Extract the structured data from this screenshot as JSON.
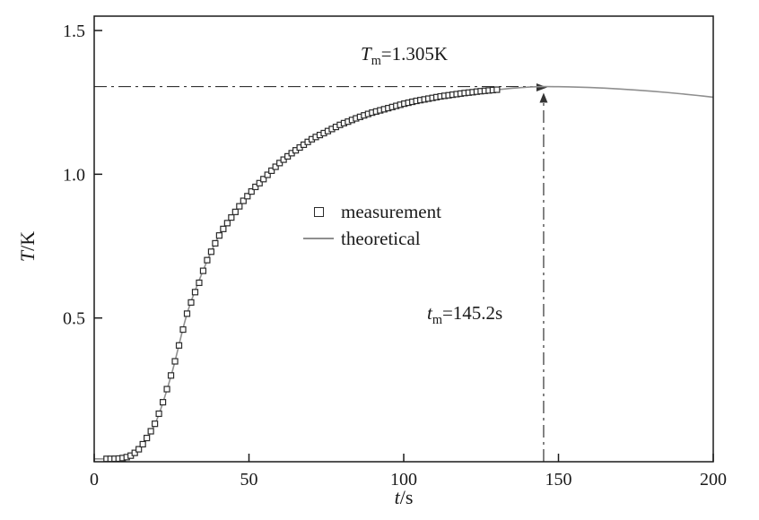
{
  "chart_data": {
    "type": "line",
    "title": "",
    "xlabel": {
      "var": "t",
      "rest": "/s"
    },
    "ylabel": {
      "var": "T",
      "rest": "/K"
    },
    "xlim": [
      0,
      200
    ],
    "ylim": [
      0,
      1.55
    ],
    "grid": false,
    "legend_position": "center",
    "xticks": [
      {
        "v": 0,
        "label": "0"
      },
      {
        "v": 50,
        "label": "50"
      },
      {
        "v": 100,
        "label": "100"
      },
      {
        "v": 150,
        "label": "150"
      },
      {
        "v": 200,
        "label": "200"
      }
    ],
    "yticks": [
      {
        "v": 0.5,
        "label": "0.5"
      },
      {
        "v": 1.0,
        "label": "1.0"
      },
      {
        "v": 1.5,
        "label": "1.5"
      }
    ],
    "series": [
      {
        "name": "measurement",
        "type": "scatter",
        "marker": "open-square",
        "color": "#2b2b2b",
        "marker_step": 1.3,
        "points": [
          [
            4,
            0.01
          ],
          [
            6,
            0.01
          ],
          [
            8,
            0.011
          ],
          [
            10,
            0.014
          ],
          [
            12,
            0.022
          ],
          [
            14,
            0.038
          ],
          [
            16,
            0.065
          ],
          [
            18,
            0.1
          ],
          [
            20,
            0.14
          ],
          [
            22,
            0.2
          ],
          [
            24,
            0.27
          ],
          [
            26,
            0.345
          ],
          [
            28,
            0.43
          ],
          [
            30,
            0.515
          ],
          [
            32,
            0.575
          ],
          [
            34,
            0.625
          ],
          [
            36,
            0.69
          ],
          [
            38,
            0.735
          ],
          [
            40,
            0.78
          ],
          [
            42,
            0.815
          ],
          [
            44,
            0.845
          ],
          [
            46,
            0.875
          ],
          [
            48,
            0.905
          ],
          [
            50,
            0.93
          ],
          [
            52,
            0.955
          ],
          [
            54,
            0.975
          ],
          [
            56,
            0.998
          ],
          [
            58,
            1.02
          ],
          [
            60,
            1.04
          ],
          [
            62,
            1.058
          ],
          [
            64,
            1.075
          ],
          [
            66,
            1.09
          ],
          [
            68,
            1.105
          ],
          [
            70,
            1.12
          ],
          [
            72,
            1.132
          ],
          [
            74,
            1.142
          ],
          [
            76,
            1.153
          ],
          [
            78,
            1.164
          ],
          [
            80,
            1.175
          ],
          [
            82,
            1.183
          ],
          [
            84,
            1.192
          ],
          [
            86,
            1.2
          ],
          [
            88,
            1.208
          ],
          [
            90,
            1.215
          ],
          [
            92,
            1.221
          ],
          [
            94,
            1.227
          ],
          [
            96,
            1.233
          ],
          [
            98,
            1.239
          ],
          [
            100,
            1.245
          ],
          [
            102,
            1.25
          ],
          [
            104,
            1.255
          ],
          [
            106,
            1.259
          ],
          [
            108,
            1.263
          ],
          [
            110,
            1.267
          ],
          [
            112,
            1.271
          ],
          [
            114,
            1.274
          ],
          [
            116,
            1.277
          ],
          [
            118,
            1.28
          ],
          [
            120,
            1.283
          ],
          [
            122,
            1.285
          ],
          [
            124,
            1.288
          ],
          [
            126,
            1.29
          ],
          [
            128,
            1.292
          ],
          [
            130,
            1.294
          ],
          [
            131,
            1.295
          ]
        ]
      },
      {
        "name": "theoretical",
        "type": "line",
        "color": "#8f8f8f",
        "points": [
          [
            0,
            0.01
          ],
          [
            5,
            0.01
          ],
          [
            10,
            0.014
          ],
          [
            15,
            0.05
          ],
          [
            20,
            0.14
          ],
          [
            25,
            0.305
          ],
          [
            30,
            0.515
          ],
          [
            35,
            0.66
          ],
          [
            40,
            0.78
          ],
          [
            45,
            0.86
          ],
          [
            50,
            0.93
          ],
          [
            55,
            0.988
          ],
          [
            60,
            1.04
          ],
          [
            65,
            1.083
          ],
          [
            70,
            1.12
          ],
          [
            75,
            1.148
          ],
          [
            80,
            1.175
          ],
          [
            85,
            1.196
          ],
          [
            90,
            1.215
          ],
          [
            95,
            1.23
          ],
          [
            100,
            1.245
          ],
          [
            105,
            1.257
          ],
          [
            110,
            1.267
          ],
          [
            115,
            1.276
          ],
          [
            120,
            1.283
          ],
          [
            125,
            1.289
          ],
          [
            130,
            1.294
          ],
          [
            135,
            1.299
          ],
          [
            140,
            1.303
          ],
          [
            145,
            1.305
          ],
          [
            150,
            1.3045
          ],
          [
            155,
            1.3035
          ],
          [
            160,
            1.302
          ],
          [
            165,
            1.2995
          ],
          [
            170,
            1.2965
          ],
          [
            175,
            1.293
          ],
          [
            180,
            1.289
          ],
          [
            185,
            1.2845
          ],
          [
            190,
            1.2795
          ],
          [
            195,
            1.274
          ],
          [
            200,
            1.268
          ]
        ]
      }
    ],
    "annotations": [
      {
        "id": "tm-temperature",
        "var": "T",
        "sub": "m",
        "rest": "=1.305K"
      },
      {
        "id": "tm-time",
        "var": "t",
        "sub": "m",
        "rest": "=145.2s"
      }
    ],
    "reference": {
      "horizontal_T": 1.305,
      "vertical_t": 145.2
    }
  },
  "colors": {
    "axis": "#1a1a1a",
    "reference_line": "#333333",
    "measurement": "#2b2b2b",
    "theoretical": "#8f8f8f"
  }
}
